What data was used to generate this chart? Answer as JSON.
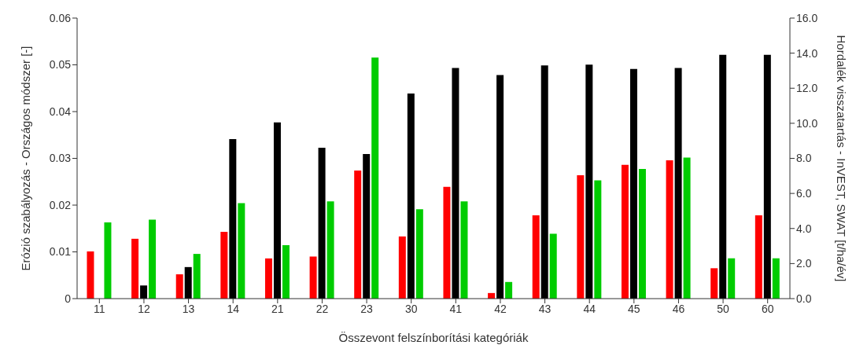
{
  "chart_data": {
    "type": "bar",
    "xlabel": "Összevont felszínborítási kategóriák",
    "ylabel": "Erózió szabályozás - Országos módszer [-]",
    "y2label": "Hordalék visszatartás - InVEST, SWAT [t/ha/év]",
    "categories": [
      "11",
      "12",
      "13",
      "14",
      "21",
      "22",
      "23",
      "30",
      "41",
      "42",
      "43",
      "44",
      "45",
      "46",
      "50",
      "60"
    ],
    "series": [
      {
        "color": "#ff0000",
        "values": [
          0.0101,
          0.0128,
          0.0052,
          0.0143,
          0.0086,
          0.009,
          0.0274,
          0.0133,
          0.0239,
          0.0012,
          0.0178,
          0.0264,
          0.0286,
          0.0296,
          0.0065,
          0.0178
        ]
      },
      {
        "color": "#000000",
        "axis": "y2",
        "values": [
          null,
          0.75,
          1.8,
          9.1,
          10.05,
          8.6,
          8.25,
          11.7,
          13.15,
          12.75,
          13.3,
          13.35,
          13.1,
          13.15,
          13.9,
          13.9
        ]
      },
      {
        "color": "#00cc00",
        "axis": "y2",
        "values": [
          4.35,
          4.5,
          2.55,
          5.45,
          3.05,
          5.55,
          13.75,
          5.1,
          5.55,
          0.95,
          3.7,
          6.75,
          7.4,
          8.05,
          2.3,
          2.3
        ]
      }
    ],
    "ylim": [
      0,
      0.06
    ],
    "yticks": [
      0,
      0.01,
      0.02,
      0.03,
      0.04,
      0.05,
      0.06
    ],
    "y2lim": [
      0,
      16
    ],
    "y2ticks": [
      {
        "value": 0,
        "label": "0.0"
      },
      {
        "value": 2,
        "label": "2.0"
      },
      {
        "value": 4,
        "label": "4.0"
      },
      {
        "value": 6,
        "label": "6.0"
      },
      {
        "value": 8,
        "label": "8.0"
      },
      {
        "value": 10,
        "label": "10.0"
      },
      {
        "value": 12,
        "label": "12.0"
      },
      {
        "value": 14,
        "label": "14.0"
      },
      {
        "value": 16,
        "label": "16.0"
      }
    ],
    "grid": false,
    "legend": false
  }
}
